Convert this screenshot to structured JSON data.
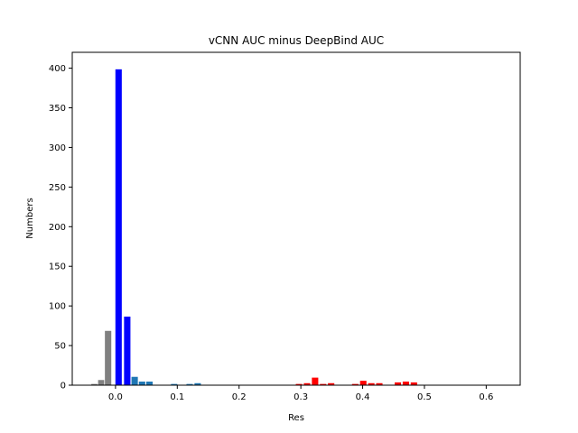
{
  "chart_data": {
    "type": "bar",
    "title": "vCNN AUC minus DeepBind AUC",
    "xlabel": "Res",
    "ylabel": "Numbers",
    "xlim": [
      -0.07,
      0.655
    ],
    "ylim": [
      0,
      420
    ],
    "xticks": [
      0.0,
      0.1,
      0.2,
      0.3,
      0.4,
      0.5,
      0.6
    ],
    "xtick_labels": [
      "0.0",
      "0.1",
      "0.2",
      "0.3",
      "0.4",
      "0.5",
      "0.6"
    ],
    "yticks": [
      0,
      50,
      100,
      150,
      200,
      250,
      300,
      350,
      400
    ],
    "ytick_labels": [
      "0",
      "50",
      "100",
      "150",
      "200",
      "250",
      "300",
      "350",
      "400"
    ],
    "bar_width": 0.0115,
    "grid": false,
    "series": [
      {
        "color": "#808080",
        "x": [
          -0.045,
          -0.034,
          -0.023,
          -0.012
        ],
        "values": [
          1,
          2,
          7,
          69
        ]
      },
      {
        "color": "#0000ff",
        "x": [
          0.005,
          0.019
        ],
        "values": [
          399,
          87
        ]
      },
      {
        "color": "#1f77b4",
        "x": [
          0.031,
          0.043,
          0.055,
          0.07,
          0.083,
          0.095,
          0.107,
          0.12,
          0.133,
          0.146,
          0.16,
          0.174,
          0.188
        ],
        "values": [
          11,
          5,
          5,
          1,
          1,
          2,
          1,
          2,
          3,
          1,
          1,
          1,
          1
        ]
      },
      {
        "color": "#ff0000",
        "x": [
          0.232,
          0.258,
          0.284,
          0.297,
          0.31,
          0.323,
          0.336,
          0.349,
          0.362,
          0.375,
          0.388,
          0.401,
          0.414,
          0.427,
          0.444,
          0.457,
          0.47,
          0.483,
          0.496
        ],
        "values": [
          1,
          1,
          1,
          2,
          3,
          10,
          2,
          3,
          1,
          1,
          2,
          6,
          3,
          3,
          1,
          4,
          5,
          4,
          1
        ]
      }
    ]
  }
}
